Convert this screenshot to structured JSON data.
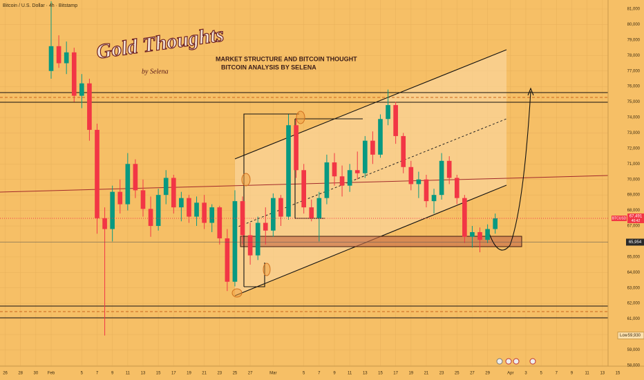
{
  "chart_data": {
    "type": "candlestick",
    "title": "Bitcoin / U.S. Dollar · 4h · Bitstamp",
    "annotations": {
      "heading": "MARKET STRUCTURE AND BITCOIN THOUGHT",
      "subheading": "BITCOIN ANALYSIS BY SELENA",
      "logo": "Gold Thoughts",
      "logo_byline": "by Selena"
    },
    "up_color": "#089981",
    "down_color": "#f23645",
    "x": [
      6,
      7,
      8,
      9,
      10,
      11,
      12,
      13,
      14,
      15,
      16,
      17,
      18,
      19,
      20,
      21,
      22,
      23,
      24,
      25,
      26,
      27,
      28,
      29,
      30,
      31,
      32,
      33,
      34,
      35,
      36,
      37,
      38,
      39,
      40,
      41,
      42,
      43,
      44,
      45,
      46,
      47,
      48,
      49,
      50,
      51,
      52,
      53,
      54,
      55,
      56,
      57,
      58,
      59,
      60,
      61,
      62,
      63,
      64
    ],
    "open": [
      77000,
      78600,
      77500,
      78200,
      75400,
      76200,
      73200,
      67500,
      66800,
      69200,
      68400,
      71000,
      69300,
      68100,
      67000,
      69000,
      70100,
      68200,
      68800,
      67600,
      68500,
      67200,
      68200,
      66200,
      63400,
      68600,
      66400,
      65100,
      67200,
      66700,
      68800,
      67600,
      73500,
      70600,
      68200,
      67500,
      68800,
      71100,
      70200,
      69600,
      70600,
      70400,
      72500,
      71600,
      73900,
      74800,
      72800,
      70800,
      69700,
      70000,
      68600,
      69000,
      71200,
      70100,
      68800,
      66300,
      66600,
      66100,
      66800
    ],
    "high": [
      81500,
      79300,
      78900,
      78500,
      76800,
      76500,
      73600,
      68200,
      69600,
      70000,
      71700,
      71300,
      70000,
      68900,
      69400,
      70600,
      70300,
      69200,
      69000,
      68900,
      69000,
      68400,
      68300,
      66800,
      69300,
      68900,
      67200,
      67600,
      68200,
      69100,
      69000,
      74200,
      73900,
      71000,
      68700,
      69200,
      71600,
      71700,
      70900,
      71000,
      71800,
      72800,
      73100,
      74200,
      75800,
      75000,
      73000,
      71200,
      70500,
      70300,
      69400,
      71700,
      71500,
      70300,
      69000,
      67000,
      66900,
      67100,
      67800
    ],
    "low": [
      76500,
      77200,
      76800,
      75000,
      74600,
      72500,
      66500,
      59930,
      66000,
      67800,
      68000,
      68800,
      67600,
      66300,
      66700,
      68400,
      67800,
      67300,
      67200,
      67000,
      66800,
      66600,
      65800,
      62800,
      63100,
      65800,
      64500,
      64800,
      65800,
      66300,
      67000,
      67400,
      70100,
      67800,
      67300,
      66000,
      68400,
      69600,
      68900,
      69200,
      70000,
      70100,
      71000,
      71400,
      73500,
      72300,
      70400,
      69300,
      68800,
      68200,
      67800,
      68700,
      69700,
      68400,
      65900,
      65600,
      65300,
      65900,
      66500
    ],
    "close": [
      78600,
      77500,
      78200,
      75400,
      76200,
      73200,
      67500,
      66800,
      69200,
      68400,
      71000,
      69300,
      68100,
      67000,
      69000,
      70100,
      68200,
      68800,
      67600,
      68500,
      67200,
      68200,
      66200,
      63400,
      68600,
      66400,
      65100,
      67200,
      66700,
      68800,
      67600,
      73500,
      70600,
      68200,
      67500,
      68800,
      71100,
      70200,
      69600,
      70600,
      70400,
      72500,
      71600,
      73900,
      74800,
      72800,
      70800,
      69700,
      70000,
      68600,
      69000,
      71200,
      70100,
      68800,
      66300,
      66600,
      66100,
      66800,
      67491
    ],
    "xlim": [
      -0.68,
      78.74
    ],
    "xticks": [
      {
        "value": 0,
        "label": "26"
      },
      {
        "value": 2,
        "label": "28"
      },
      {
        "value": 4,
        "label": "30"
      },
      {
        "value": 6,
        "label": "Feb"
      },
      {
        "value": 10,
        "label": "5"
      },
      {
        "value": 12,
        "label": "7"
      },
      {
        "value": 14,
        "label": "9"
      },
      {
        "value": 16,
        "label": "11"
      },
      {
        "value": 18,
        "label": "13"
      },
      {
        "value": 20,
        "label": "15"
      },
      {
        "value": 22,
        "label": "17"
      },
      {
        "value": 24,
        "label": "19"
      },
      {
        "value": 26,
        "label": "21"
      },
      {
        "value": 28,
        "label": "23"
      },
      {
        "value": 30,
        "label": "25"
      },
      {
        "value": 32,
        "label": "27"
      },
      {
        "value": 35,
        "label": "Mar"
      },
      {
        "value": 39,
        "label": "5"
      },
      {
        "value": 41,
        "label": "7"
      },
      {
        "value": 43,
        "label": "9"
      },
      {
        "value": 45,
        "label": "11"
      },
      {
        "value": 47,
        "label": "13"
      },
      {
        "value": 49,
        "label": "15"
      },
      {
        "value": 51,
        "label": "17"
      },
      {
        "value": 53,
        "label": "19"
      },
      {
        "value": 55,
        "label": "21"
      },
      {
        "value": 57,
        "label": "23"
      },
      {
        "value": 59,
        "label": "25"
      },
      {
        "value": 61,
        "label": "27"
      },
      {
        "value": 63,
        "label": "29"
      },
      {
        "value": 66,
        "label": "Apr"
      },
      {
        "value": 68,
        "label": "3"
      },
      {
        "value": 70,
        "label": "5"
      },
      {
        "value": 72,
        "label": "7"
      },
      {
        "value": 74,
        "label": "9"
      },
      {
        "value": 76,
        "label": "11"
      },
      {
        "value": 78,
        "label": "13"
      },
      {
        "value": 80,
        "label": "15"
      }
    ],
    "ylim": [
      57950,
      81580
    ],
    "yticks": [
      {
        "value": 58000,
        "label": "58,000"
      },
      {
        "value": 59000,
        "label": "59,000"
      },
      {
        "value": 60000,
        "label": "60,000"
      },
      {
        "value": 61000,
        "label": "61,000"
      },
      {
        "value": 62000,
        "label": "62,000"
      },
      {
        "value": 63000,
        "label": "63,000"
      },
      {
        "value": 64000,
        "label": "64,000"
      },
      {
        "value": 65000,
        "label": "65,000"
      },
      {
        "value": 66000,
        "label": "66,000"
      },
      {
        "value": 67000,
        "label": "67,000"
      },
      {
        "value": 68000,
        "label": "68,000"
      },
      {
        "value": 69000,
        "label": "69,000"
      },
      {
        "value": 70000,
        "label": "70,000"
      },
      {
        "value": 71000,
        "label": "71,000"
      },
      {
        "value": 72000,
        "label": "72,000"
      },
      {
        "value": 73000,
        "label": "73,000"
      },
      {
        "value": 74000,
        "label": "74,000"
      },
      {
        "value": 75000,
        "label": "75,000"
      },
      {
        "value": 76000,
        "label": "76,000"
      },
      {
        "value": 77000,
        "label": "77,000"
      },
      {
        "value": 78000,
        "label": "78,000"
      },
      {
        "value": 79000,
        "label": "79,000"
      },
      {
        "value": 80000,
        "label": "80,000"
      },
      {
        "value": 81000,
        "label": "81,000"
      }
    ],
    "grid": true,
    "last": {
      "symbol": "BTCUSD",
      "value": 67491,
      "label": "67,491",
      "countdown": "40:42"
    },
    "level": {
      "value": 65954,
      "label": "65,954"
    },
    "low_marker": {
      "text": "Low",
      "value": 59930,
      "label": "59,930"
    }
  }
}
